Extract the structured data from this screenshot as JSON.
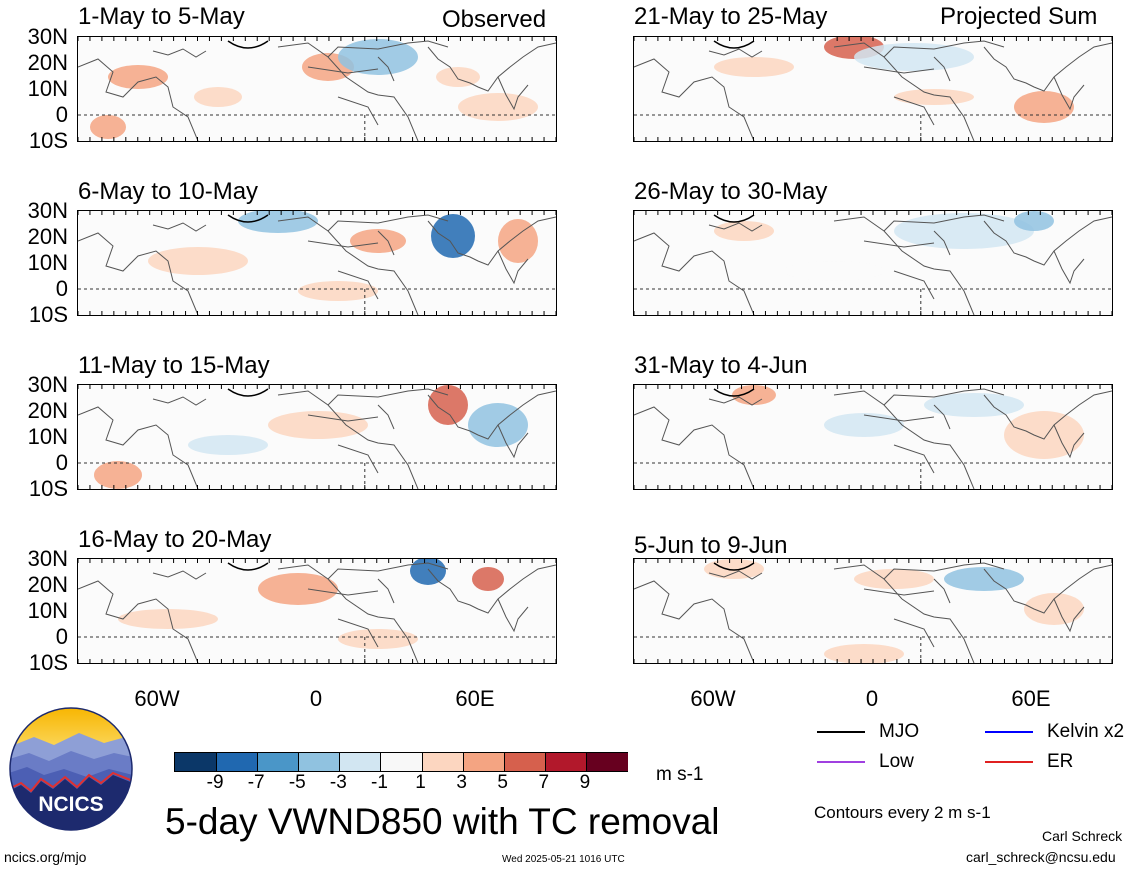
{
  "headers": {
    "observed": "Observed",
    "projected": "Projected Sum"
  },
  "panels_left": [
    {
      "title": "1-May to 5-May"
    },
    {
      "title": "6-May to 10-May"
    },
    {
      "title": "11-May to 15-May"
    },
    {
      "title": "16-May to 20-May"
    }
  ],
  "panels_right": [
    {
      "title": "21-May to 25-May"
    },
    {
      "title": "26-May to 30-May"
    },
    {
      "title": "31-May to 4-Jun"
    },
    {
      "title": "5-Jun to 9-Jun"
    }
  ],
  "lat_labels": [
    "30N",
    "20N",
    "10N",
    "0",
    "10S"
  ],
  "lon_labels": [
    "60W",
    "0",
    "60E"
  ],
  "legend_lines": [
    {
      "label": "MJO",
      "color": "#000000"
    },
    {
      "label": "Kelvin x2",
      "color": "#0000ff"
    },
    {
      "label": "Low",
      "color": "#a040e0"
    },
    {
      "label": "ER",
      "color": "#e02020"
    }
  ],
  "colorbar": {
    "labels": [
      "-9",
      "-7",
      "-5",
      "-3",
      "-1",
      "1",
      "3",
      "5",
      "7",
      "9"
    ],
    "colors": [
      "#0b3768",
      "#2068b0",
      "#4a96c8",
      "#90c2e0",
      "#d2e6f2",
      "#f8f8f8",
      "#fcd6c0",
      "#f4a482",
      "#d6604d",
      "#b2182b",
      "#67001f"
    ],
    "unit": "m s-1"
  },
  "contours_note": "Contours every 2 m s-1",
  "main_title": "5-day VWND850 with TC removal",
  "logo_text": "NCICS",
  "footer": {
    "url": "ncics.org/mjo",
    "timestamp": "Wed 2025-05-21 1016 UTC",
    "author": "Carl Schreck",
    "email": "carl_schreck@ncsu.edu"
  }
}
